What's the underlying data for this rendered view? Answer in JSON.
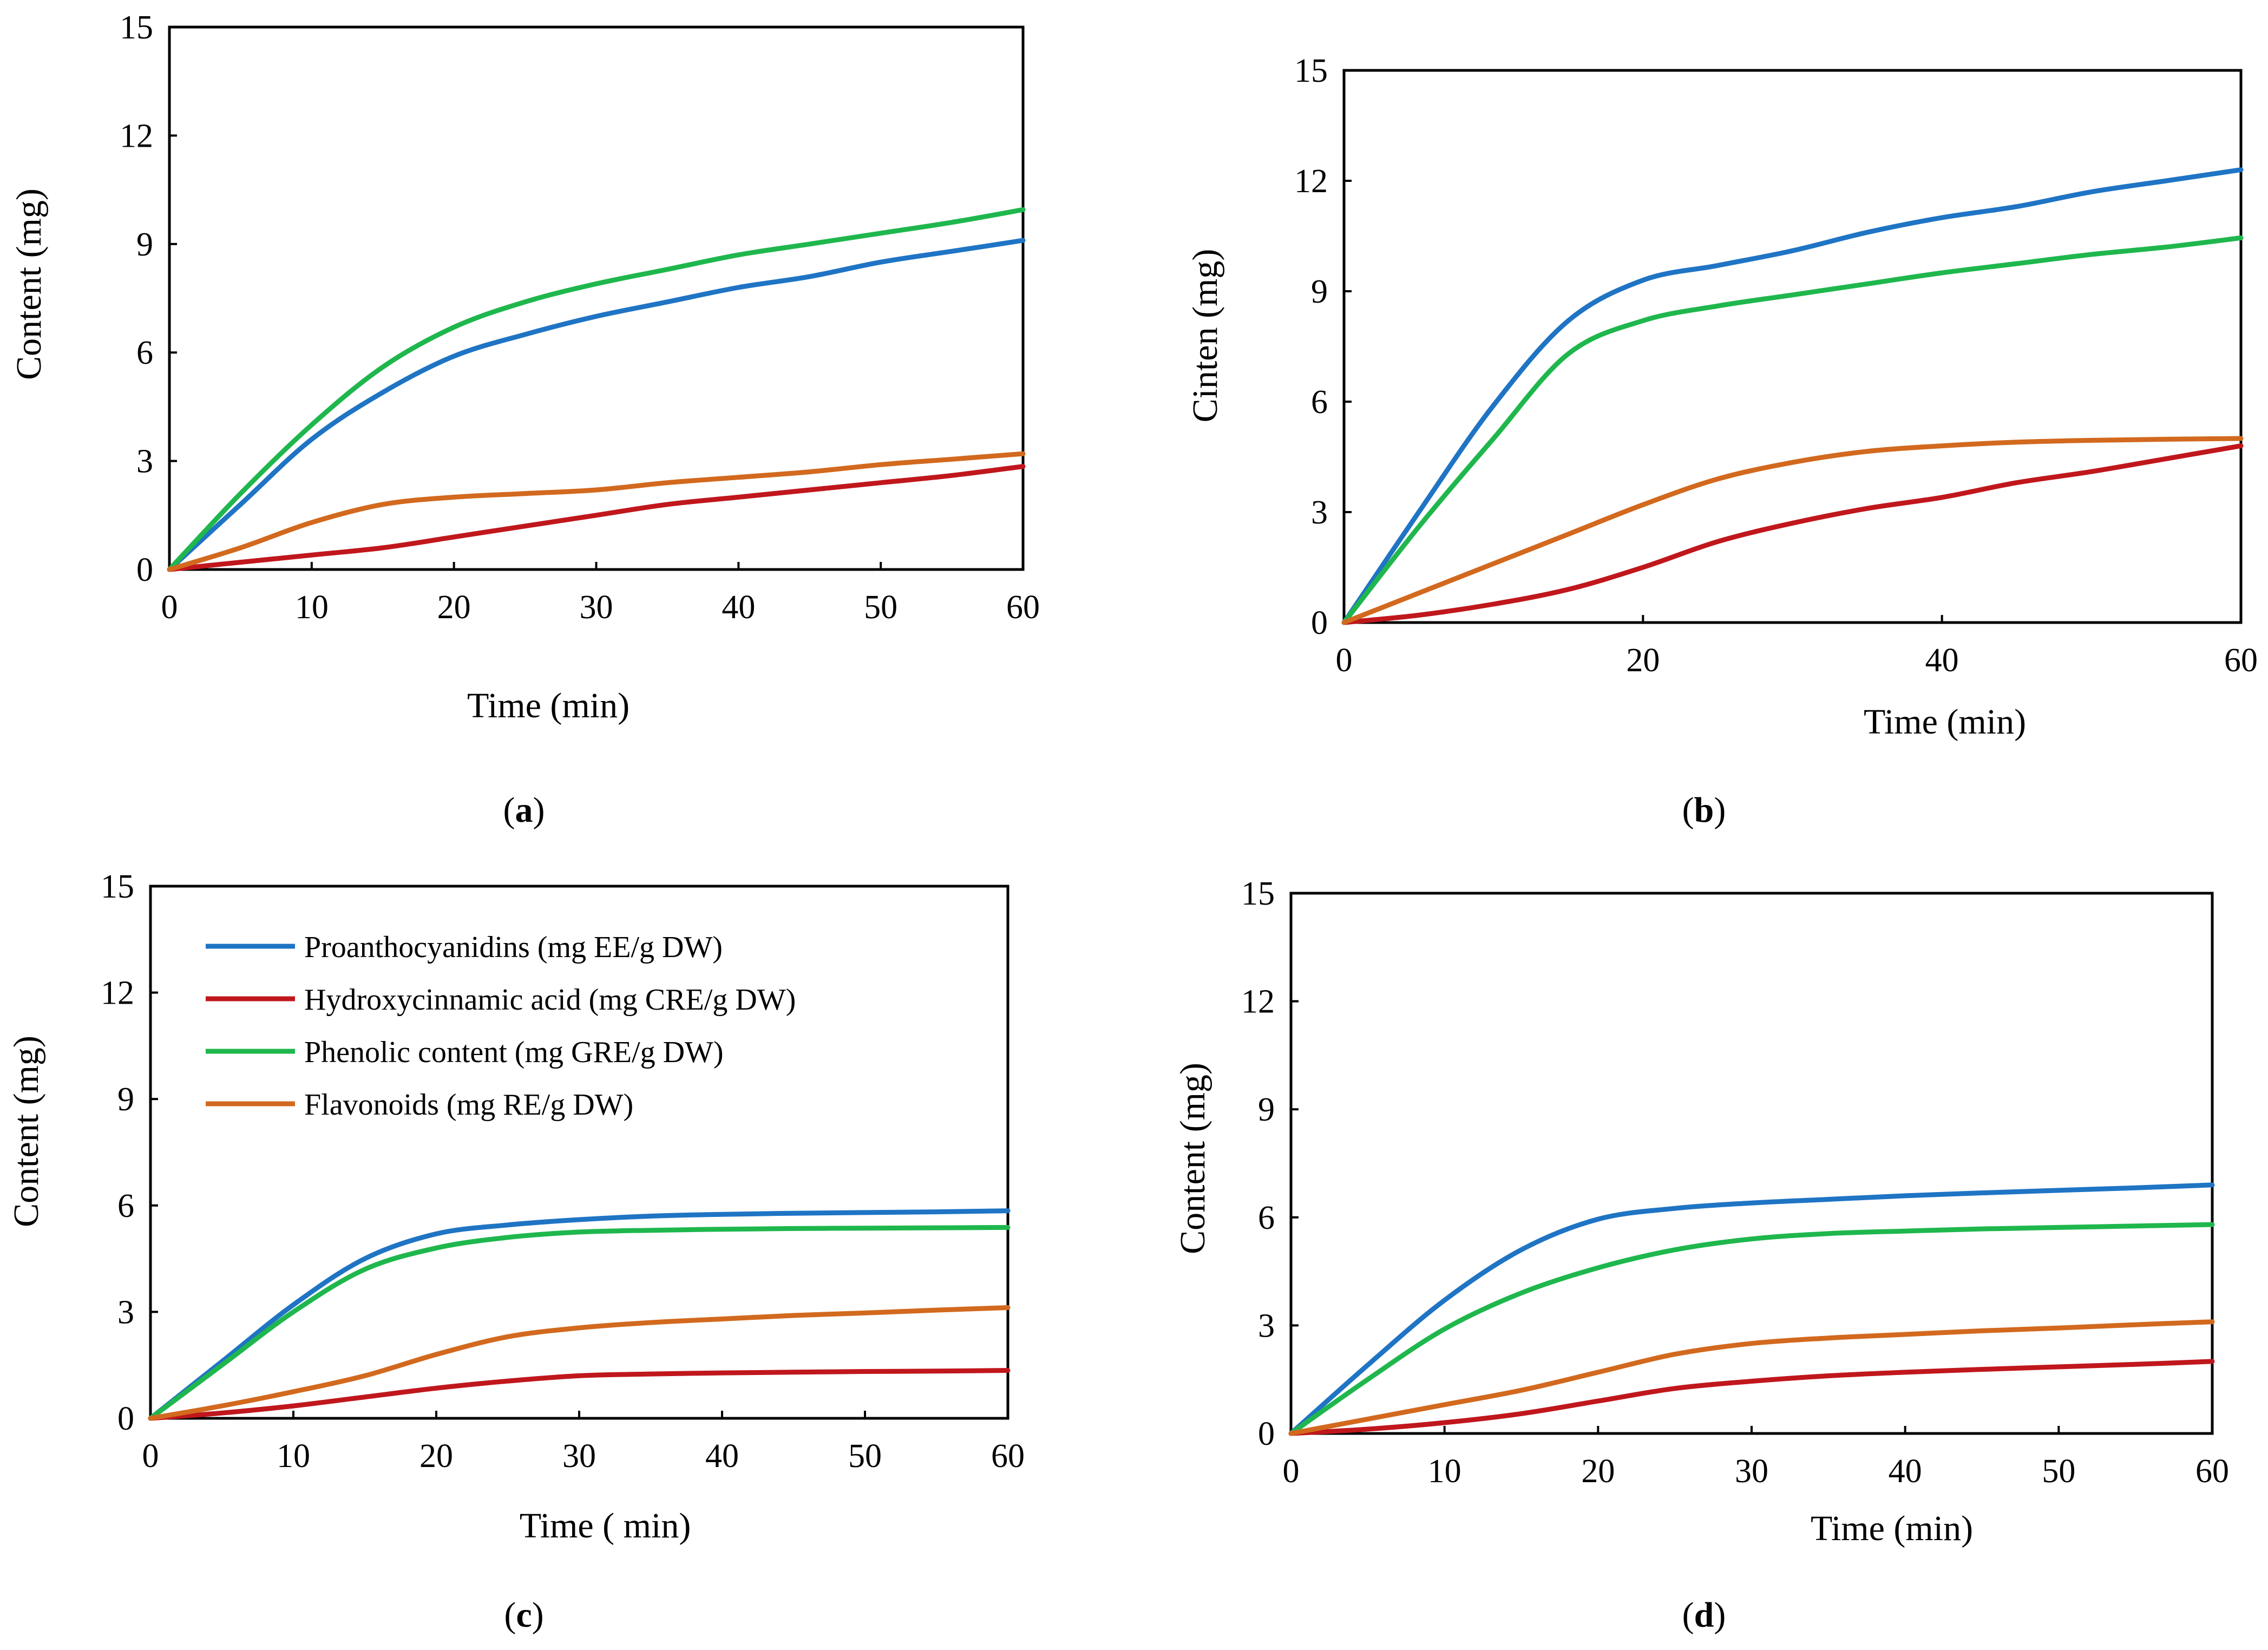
{
  "colors": {
    "proanthocyanidins": "#1f74c4",
    "hydroxycinnamic": "#c0171c",
    "phenolic": "#1fb74d",
    "flavonoids": "#d2691e"
  },
  "legend": {
    "items": [
      {
        "label": "Proanthocyanidins (mg EE/g DW)",
        "color": "#1f74c4"
      },
      {
        "label": "Hydroxycinnamic acid (mg CRE/g DW)",
        "color": "#c0171c"
      },
      {
        "label": "Phenolic content (mg GRE/g DW)",
        "color": "#1fb74d"
      },
      {
        "label": "Flavonoids (mg RE/g DW)",
        "color": "#d2691e"
      }
    ]
  },
  "chart_data": [
    {
      "type": "line",
      "caption_open": "(",
      "caption_letter": "a",
      "caption_close": ")",
      "xlabel": "Time (min)",
      "ylabel": "Content (mg)",
      "xlim": [
        0,
        60
      ],
      "ylim": [
        0,
        15
      ],
      "xticks": [
        "0",
        "10",
        "20",
        "30",
        "40",
        "50",
        "60"
      ],
      "yticks": [
        "0",
        "3",
        "6",
        "9",
        "12",
        "15"
      ],
      "x": [
        0,
        5,
        10,
        15,
        20,
        25,
        30,
        35,
        40,
        45,
        50,
        55,
        60
      ],
      "series": [
        {
          "name": "Proanthocyanidins (mg EE/g DW)",
          "color": "#1f74c4",
          "values": [
            0,
            1.8,
            3.6,
            4.9,
            5.9,
            6.5,
            7.0,
            7.4,
            7.8,
            8.1,
            8.5,
            8.8,
            9.1
          ]
        },
        {
          "name": "Hydroxycinnamic acid (mg CRE/g DW)",
          "color": "#c0171c",
          "values": [
            0,
            0.2,
            0.4,
            0.6,
            0.9,
            1.2,
            1.5,
            1.8,
            2.0,
            2.2,
            2.4,
            2.6,
            2.85
          ]
        },
        {
          "name": "Phenolic content (mg GRE/g DW)",
          "color": "#1fb74d",
          "values": [
            0,
            2.1,
            4.0,
            5.6,
            6.7,
            7.4,
            7.9,
            8.3,
            8.7,
            9.0,
            9.3,
            9.6,
            9.95
          ]
        },
        {
          "name": "Flavonoids (mg RE/g DW)",
          "color": "#d2691e",
          "values": [
            0,
            0.6,
            1.3,
            1.8,
            2.0,
            2.1,
            2.2,
            2.4,
            2.55,
            2.7,
            2.9,
            3.05,
            3.2
          ]
        }
      ]
    },
    {
      "type": "line",
      "caption_open": "(",
      "caption_letter": "b",
      "caption_close": ")",
      "xlabel": "Time (min)",
      "ylabel": "Cinten (mg)",
      "xlim": [
        0,
        60
      ],
      "ylim": [
        0,
        15
      ],
      "xticks": [
        "0",
        "20",
        "40",
        "60"
      ],
      "yticks": [
        "0",
        "3",
        "6",
        "9",
        "12",
        "15"
      ],
      "x": [
        0,
        5,
        10,
        15,
        20,
        25,
        30,
        35,
        40,
        45,
        50,
        55,
        60
      ],
      "series": [
        {
          "name": "Proanthocyanidins (mg EE/g DW)",
          "color": "#1f74c4",
          "values": [
            0,
            3.0,
            5.9,
            8.2,
            9.3,
            9.7,
            10.1,
            10.6,
            11.0,
            11.3,
            11.7,
            12.0,
            12.3
          ]
        },
        {
          "name": "Hydroxycinnamic acid (mg CRE/g DW)",
          "color": "#c0171c",
          "values": [
            0,
            0.2,
            0.5,
            0.9,
            1.5,
            2.2,
            2.7,
            3.1,
            3.4,
            3.8,
            4.1,
            4.45,
            4.8
          ]
        },
        {
          "name": "Phenolic content (mg GRE/g DW)",
          "color": "#1fb74d",
          "values": [
            0,
            2.6,
            5.0,
            7.3,
            8.2,
            8.6,
            8.9,
            9.2,
            9.5,
            9.75,
            10.0,
            10.2,
            10.45
          ]
        },
        {
          "name": "Flavonoids (mg RE/g DW)",
          "color": "#d2691e",
          "values": [
            0,
            0.8,
            1.6,
            2.4,
            3.2,
            3.9,
            4.35,
            4.65,
            4.8,
            4.9,
            4.95,
            4.98,
            5.0
          ]
        }
      ]
    },
    {
      "type": "line",
      "caption_open": "(",
      "caption_letter": "c",
      "caption_close": ")",
      "xlabel": "Time ( min)",
      "ylabel": "Content (mg)",
      "xlim": [
        0,
        60
      ],
      "ylim": [
        0,
        15
      ],
      "xticks": [
        "0",
        "10",
        "20",
        "30",
        "40",
        "50",
        "60"
      ],
      "yticks": [
        "0",
        "3",
        "6",
        "9",
        "12",
        "15"
      ],
      "x": [
        0,
        5,
        10,
        15,
        20,
        25,
        30,
        35,
        40,
        45,
        50,
        55,
        60
      ],
      "series": [
        {
          "name": "Proanthocyanidins (mg EE/g DW)",
          "color": "#1f74c4",
          "values": [
            0,
            1.6,
            3.2,
            4.5,
            5.2,
            5.45,
            5.6,
            5.7,
            5.75,
            5.78,
            5.8,
            5.82,
            5.85
          ]
        },
        {
          "name": "Hydroxycinnamic acid (mg CRE/g DW)",
          "color": "#c0171c",
          "values": [
            0,
            0.15,
            0.35,
            0.6,
            0.85,
            1.05,
            1.2,
            1.25,
            1.28,
            1.3,
            1.32,
            1.33,
            1.35
          ]
        },
        {
          "name": "Phenolic content (mg GRE/g DW)",
          "color": "#1fb74d",
          "values": [
            0,
            1.5,
            3.0,
            4.2,
            4.8,
            5.1,
            5.25,
            5.3,
            5.33,
            5.35,
            5.36,
            5.37,
            5.38
          ]
        },
        {
          "name": "Flavonoids (mg RE/g DW)",
          "color": "#d2691e",
          "values": [
            0,
            0.35,
            0.75,
            1.2,
            1.8,
            2.3,
            2.55,
            2.7,
            2.8,
            2.9,
            2.97,
            3.05,
            3.12
          ]
        }
      ]
    },
    {
      "type": "line",
      "caption_open": "(",
      "caption_letter": "d",
      "caption_close": ")",
      "xlabel": "Time (min)",
      "ylabel": "Content (mg)",
      "xlim": [
        0,
        60
      ],
      "ylim": [
        0,
        15
      ],
      "xticks": [
        "0",
        "10",
        "20",
        "30",
        "40",
        "50",
        "60"
      ],
      "yticks": [
        "0",
        "3",
        "6",
        "9",
        "12",
        "15"
      ],
      "x": [
        0,
        5,
        10,
        15,
        20,
        25,
        30,
        35,
        40,
        45,
        50,
        55,
        60
      ],
      "series": [
        {
          "name": "Proanthocyanidins (mg EE/g DW)",
          "color": "#1f74c4",
          "values": [
            0,
            1.9,
            3.7,
            5.1,
            5.95,
            6.25,
            6.4,
            6.5,
            6.6,
            6.68,
            6.75,
            6.82,
            6.9
          ]
        },
        {
          "name": "Hydroxycinnamic acid (mg CRE/g DW)",
          "color": "#c0171c",
          "values": [
            0,
            0.12,
            0.3,
            0.55,
            0.9,
            1.25,
            1.45,
            1.6,
            1.7,
            1.78,
            1.85,
            1.92,
            2.0
          ]
        },
        {
          "name": "Phenolic content (mg GRE/g DW)",
          "color": "#1fb74d",
          "values": [
            0,
            1.5,
            2.9,
            3.9,
            4.6,
            5.1,
            5.4,
            5.55,
            5.62,
            5.68,
            5.72,
            5.76,
            5.8
          ]
        },
        {
          "name": "Flavonoids (mg RE/g DW)",
          "color": "#d2691e",
          "values": [
            0,
            0.4,
            0.8,
            1.2,
            1.7,
            2.2,
            2.5,
            2.65,
            2.75,
            2.85,
            2.93,
            3.02,
            3.1
          ]
        }
      ]
    }
  ]
}
